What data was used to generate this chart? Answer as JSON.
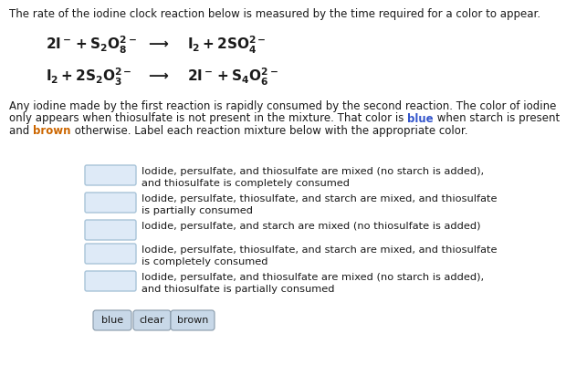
{
  "bg_color": "#ffffff",
  "title_text": "The rate of the iodine clock reaction below is measured by the time required for a color to appear.",
  "body_line1": "Any iodine made by the first reaction is rapidly consumed by the second reaction. The color of iodine",
  "body_line2_pre": "only appears when thiosulfate is not present in the mixture. That color is ",
  "blue_word": "blue",
  "body_line2_post": " when starch is present",
  "body_line3_pre": "and ",
  "brown_word": "brown",
  "body_line3_post": " otherwise. Label each reaction mixture below with the appropriate color.",
  "items": [
    "Iodide, persulfate, and thiosulfate are mixed (no starch is added),\nand thiosulfate is completely consumed",
    "Iodide, persulfate, thiosulfate, and starch are mixed, and thiosulfate\nis partially consumed",
    "Iodide, persulfate, and starch are mixed (no thiosulfate is added)",
    "Iodide, persulfate, thiosulfate, and starch are mixed, and thiosulfate\nis completely consumed",
    "Iodide, persulfate, and thiosulfate are mixed (no starch is added),\nand thiosulfate is partially consumed"
  ],
  "box_facecolor": "#deeaf7",
  "box_edgecolor": "#a8c4d8",
  "blue_color": "#3355cc",
  "brown_color": "#cc6600",
  "text_color": "#1a1a1a",
  "button_facecolor": "#c8d8e8",
  "button_edgecolor": "#889aaa",
  "button_labels": [
    "blue",
    "clear",
    "brown"
  ],
  "title_fontsize": 8.5,
  "body_fontsize": 8.5,
  "eq_fontsize": 11,
  "item_fontsize": 8.2,
  "btn_fontsize": 8.0
}
